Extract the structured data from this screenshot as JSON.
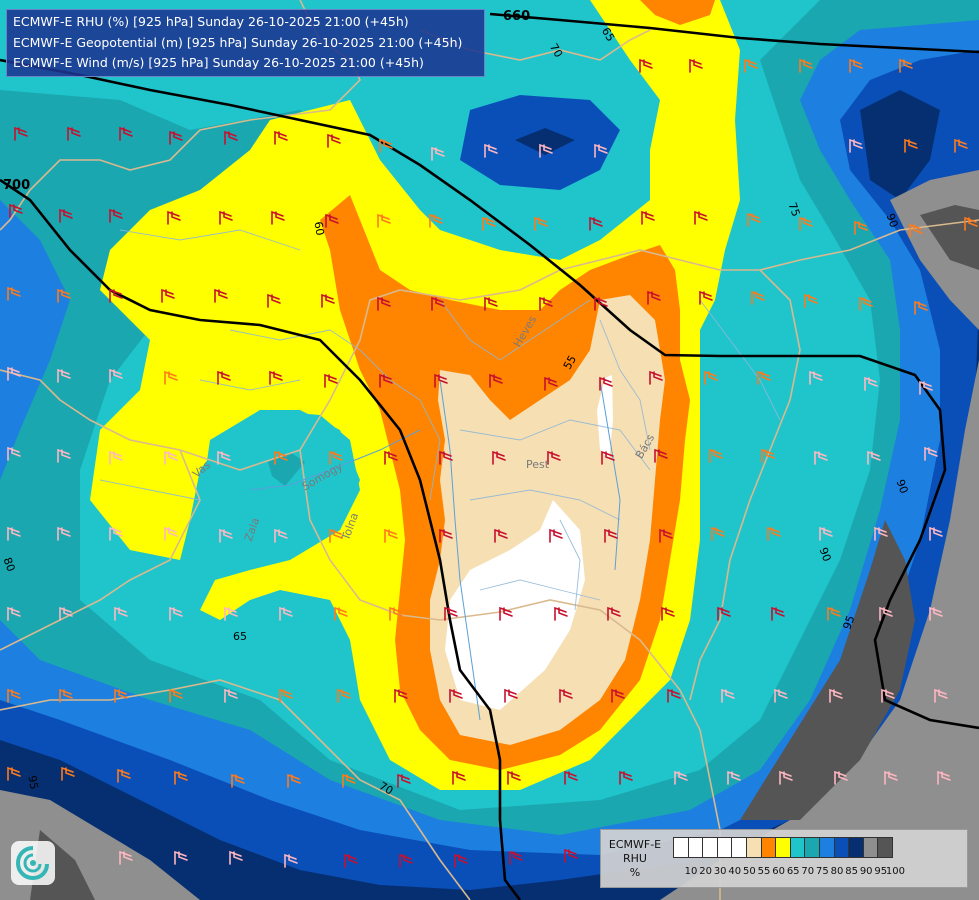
{
  "header": {
    "line1": "ECMWF-E RHU (%) [925 hPa] Sunday 26-10-2025 21:00 (+45h)",
    "line2": "ECMWF-E Geopotential (m) [925 hPa] Sunday 26-10-2025 21:00 (+45h)",
    "line3": "ECMWF-E Wind (m/s) [925 hPa] Sunday 26-10-2025 21:00 (+45h)"
  },
  "legend": {
    "title_lines": [
      "ECMWF-E",
      "RHU",
      "%"
    ],
    "ticks": [
      "10",
      "20",
      "30",
      "40",
      "50",
      "55",
      "60",
      "65",
      "70",
      "75",
      "80",
      "85",
      "90",
      "95",
      "100"
    ],
    "colors": [
      "#ffffff",
      "#ffffff",
      "#ffffff",
      "#ffffff",
      "#ffffff",
      "#f6dfb3",
      "#ff8400",
      "#ffff00",
      "#1fc5cb",
      "#1aa7b0",
      "#1d7fe0",
      "#0a4fb8",
      "#062f72",
      "#8f8f8f",
      "#555555"
    ]
  },
  "contour_labels": {
    "c660": "660",
    "c700": "700",
    "rhu": [
      "70",
      "65",
      "60",
      "55",
      "75",
      "90",
      "90",
      "90",
      "95",
      "80",
      "65",
      "70",
      "95"
    ]
  },
  "places": [
    "Pest",
    "Heves",
    "Bács",
    "Zala",
    "Somogy",
    "Vas",
    "Tolna"
  ],
  "colors": {
    "rhu_55": "#f6dfb3",
    "rhu_60": "#ff8400",
    "rhu_65": "#ffff00",
    "rhu_70": "#1fc5cb",
    "rhu_75": "#1aa7b0",
    "rhu_80": "#1d7fe0",
    "rhu_85": "#0a4fb8",
    "rhu_90": "#062f72",
    "rhu_95": "#8f8f8f",
    "rhu_100": "#555555"
  }
}
